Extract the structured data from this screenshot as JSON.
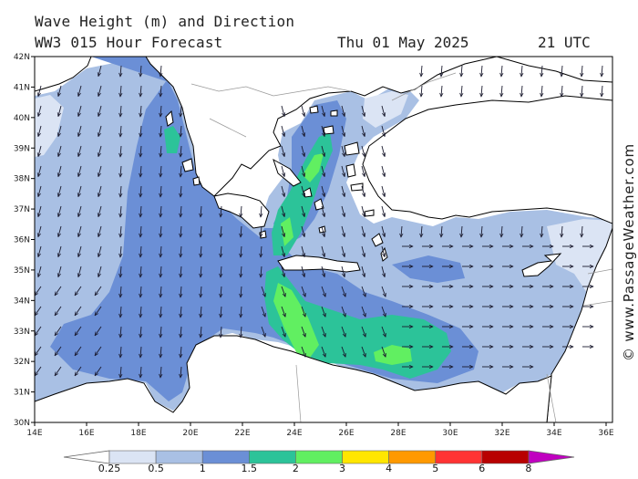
{
  "header": {
    "title": "Wave Height (m) and Direction",
    "model": "WW3 015 Hour Forecast",
    "date": "Thu 01 May 2025",
    "hour": "21 UTC"
  },
  "credit": "© www.PassageWeather.com",
  "map": {
    "region": "Eastern Mediterranean",
    "lat_ticks": [
      "42N",
      "41N",
      "40N",
      "39N",
      "38N",
      "37N",
      "36N",
      "35N",
      "34N",
      "33N",
      "32N",
      "31N",
      "30N"
    ],
    "lon_ticks": [
      "14E",
      "16E",
      "18E",
      "20E",
      "22E",
      "24E",
      "26E",
      "28E",
      "30E",
      "32E",
      "34E",
      "36E"
    ],
    "colors": {
      "land": "#ffffff",
      "coastline": "#000000",
      "border": "#999999"
    }
  },
  "legend": {
    "labels": [
      "0.25",
      "0.5",
      "1",
      "1.5",
      "2",
      "3",
      "4",
      "5",
      "6",
      "8"
    ],
    "colors": [
      "#dbe4f4",
      "#a9c0e4",
      "#6b8fd6",
      "#2cc399",
      "#61ef61",
      "#ffe600",
      "#ff9900",
      "#ff3333",
      "#b80000",
      "#c000c0"
    ]
  }
}
